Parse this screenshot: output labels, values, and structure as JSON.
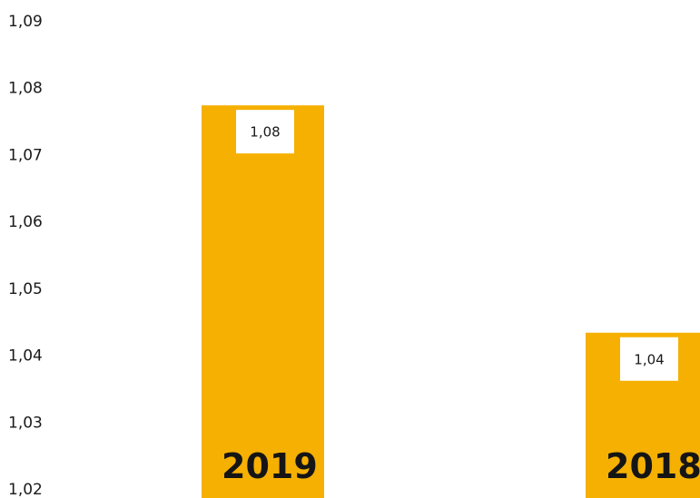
{
  "chart_data": {
    "type": "bar",
    "categories": [
      "2019",
      "2018"
    ],
    "values": [
      1.0775,
      1.0435
    ],
    "data_labels": [
      "1,08",
      "1,04"
    ],
    "yticks": [
      {
        "value": 1.09,
        "label": "1,09"
      },
      {
        "value": 1.08,
        "label": "1,08"
      },
      {
        "value": 1.07,
        "label": "1,07"
      },
      {
        "value": 1.06,
        "label": "1,06"
      },
      {
        "value": 1.05,
        "label": "1,05"
      },
      {
        "value": 1.04,
        "label": "1,04"
      },
      {
        "value": 1.03,
        "label": "1,03"
      },
      {
        "value": 1.02,
        "label": "1,02"
      }
    ],
    "ylim": [
      1.02,
      1.09
    ],
    "grid": false,
    "legend": "none",
    "bar_color": "#f5b002",
    "label_box_color": "#ffffff"
  }
}
